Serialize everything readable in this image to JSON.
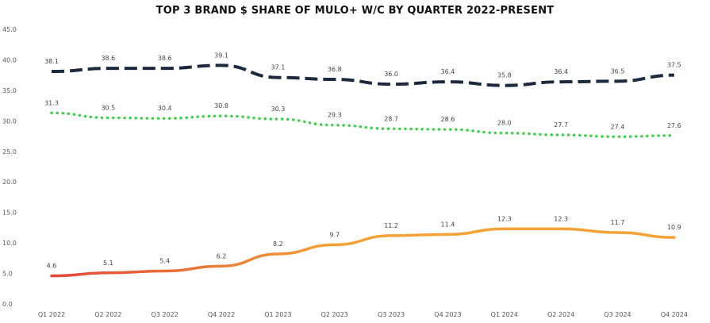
{
  "chart_data": {
    "type": "line",
    "title": "TOP 3 BRAND $ SHARE OF MULO+ W/C BY QUARTER 2022-PRESENT",
    "xlabel": "",
    "ylabel": "",
    "ylim": [
      0,
      45
    ],
    "y_ticks": [
      "0.0",
      "5.0",
      "10.0",
      "15.0",
      "20.0",
      "25.0",
      "30.0",
      "35.0",
      "40.0",
      "45.0"
    ],
    "grid": false,
    "legend": "none",
    "categories": [
      "Q1 2022",
      "Q2 2022",
      "Q3 2022",
      "Q4 2022",
      "Q1 2023",
      "Q2 2023",
      "Q3 2023",
      "Q4 2023",
      "Q1 2024",
      "Q2 2024",
      "Q3 2024",
      "Q4 2024"
    ],
    "series": [
      {
        "values": [
          38.1,
          38.6,
          38.6,
          39.1,
          37.1,
          36.8,
          36.0,
          36.4,
          35.8,
          36.4,
          36.5,
          37.5
        ],
        "labels": [
          "38.1",
          "38.6",
          "38.6",
          "39.1",
          "37.1",
          "36.8",
          "36.0",
          "36.4",
          "35.8",
          "36.4",
          "36.5",
          "37.5"
        ],
        "color": "#1b2a3e",
        "style": "dashed"
      },
      {
        "values": [
          31.3,
          30.5,
          30.4,
          30.8,
          30.3,
          29.3,
          28.7,
          28.6,
          28.0,
          27.7,
          27.4,
          27.6
        ],
        "labels": [
          "31.3",
          "30.5",
          "30.4",
          "30.8",
          "30.3",
          "29.3",
          "28.7",
          "28.6",
          "28.0",
          "27.7",
          "27.4",
          "27.6"
        ],
        "color": "#3fcf4a",
        "style": "dotted"
      },
      {
        "values": [
          4.6,
          5.1,
          5.4,
          6.2,
          8.2,
          9.7,
          11.2,
          11.4,
          12.3,
          12.3,
          11.7,
          10.9
        ],
        "labels": [
          "4.6",
          "5.1",
          "5.4",
          "6.2",
          "8.2",
          "9.7",
          "11.2",
          "11.4",
          "12.3",
          "12.3",
          "11.7",
          "10.9"
        ],
        "color_start": "#e0473a",
        "color_end": "#f4a236",
        "style": "solid"
      }
    ]
  }
}
